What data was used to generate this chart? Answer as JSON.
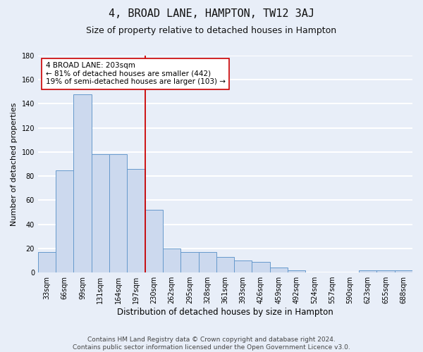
{
  "title": "4, BROAD LANE, HAMPTON, TW12 3AJ",
  "subtitle": "Size of property relative to detached houses in Hampton",
  "xlabel": "Distribution of detached houses by size in Hampton",
  "ylabel": "Number of detached properties",
  "bin_labels": [
    "33sqm",
    "66sqm",
    "99sqm",
    "131sqm",
    "164sqm",
    "197sqm",
    "230sqm",
    "262sqm",
    "295sqm",
    "328sqm",
    "361sqm",
    "393sqm",
    "426sqm",
    "459sqm",
    "492sqm",
    "524sqm",
    "557sqm",
    "590sqm",
    "623sqm",
    "655sqm",
    "688sqm"
  ],
  "bar_values": [
    17,
    85,
    148,
    98,
    98,
    86,
    52,
    20,
    17,
    17,
    13,
    10,
    9,
    4,
    2,
    0,
    0,
    0,
    2,
    2,
    2
  ],
  "bar_color": "#ccd9ee",
  "bar_edge_color": "#6699cc",
  "property_line_bin_index": 5.5,
  "line_color": "#cc0000",
  "annotation_text": "4 BROAD LANE: 203sqm\n← 81% of detached houses are smaller (442)\n19% of semi-detached houses are larger (103) →",
  "annotation_box_color": "#ffffff",
  "annotation_box_edge_color": "#cc0000",
  "ylim": [
    0,
    180
  ],
  "yticks": [
    0,
    20,
    40,
    60,
    80,
    100,
    120,
    140,
    160,
    180
  ],
  "footer_text": "Contains HM Land Registry data © Crown copyright and database right 2024.\nContains public sector information licensed under the Open Government Licence v3.0.",
  "bg_color": "#e8eef8",
  "plot_bg_color": "#e8eef8",
  "grid_color": "#ffffff",
  "title_fontsize": 11,
  "subtitle_fontsize": 9,
  "xlabel_fontsize": 8.5,
  "ylabel_fontsize": 8,
  "tick_fontsize": 7,
  "footer_fontsize": 6.5,
  "ann_fontsize": 7.5
}
